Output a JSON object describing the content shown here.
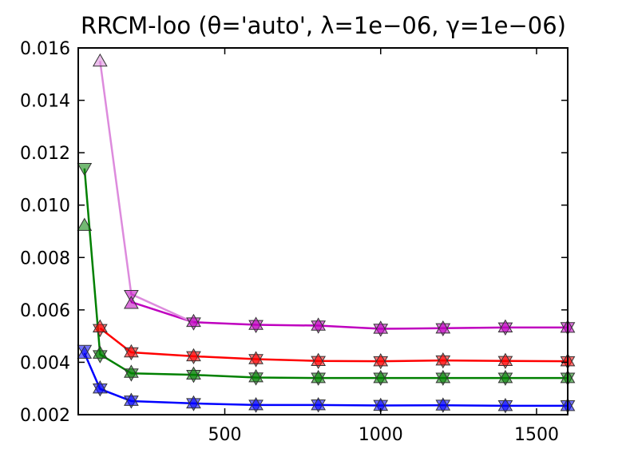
{
  "chart_data": {
    "type": "line",
    "title": "RRCM-loo (θ='auto', λ=1e−06, γ=1e−06)",
    "xlabel": "",
    "ylabel": "",
    "xlim": [
      30,
      1600
    ],
    "ylim": [
      0.002,
      0.016
    ],
    "xticks": [
      500,
      1000,
      1500
    ],
    "xtick_labels": [
      "500",
      "1000",
      "1500"
    ],
    "yticks": [
      0.002,
      0.004,
      0.006,
      0.008,
      0.01,
      0.012,
      0.014,
      0.016
    ],
    "ytick_labels": [
      "0.002",
      "0.004",
      "0.006",
      "0.008",
      "0.010",
      "0.012",
      "0.014",
      "0.016"
    ],
    "grid": false,
    "x": [
      50,
      100,
      200,
      400,
      600,
      800,
      1000,
      1200,
      1400,
      1600
    ],
    "series": [
      {
        "color": "#0000ff",
        "line_values": [
          0.00435,
          0.00298,
          0.00252,
          0.00243,
          0.00237,
          0.00237,
          0.00235,
          0.00236,
          0.00234,
          0.00234
        ],
        "marker_up": [
          0.00435,
          0.00302,
          0.00255,
          0.00245,
          0.00238,
          0.00238,
          0.00236,
          0.00237,
          0.00235,
          0.00235
        ],
        "marker_down": [
          0.00445,
          0.00298,
          0.00252,
          0.00242,
          0.00236,
          0.00237,
          0.00235,
          0.00236,
          0.00234,
          0.00234
        ]
      },
      {
        "color": "#008000",
        "line_values": [
          0.0114,
          0.0043,
          0.00358,
          0.00352,
          0.00342,
          0.0034,
          0.0034,
          0.0034,
          0.0034,
          0.0034
        ],
        "marker_up": [
          0.00923,
          0.00435,
          0.00362,
          0.00355,
          0.00345,
          0.00342,
          0.00342,
          0.00342,
          0.00342,
          0.00342
        ],
        "marker_down": [
          0.0114,
          0.00425,
          0.00355,
          0.0035,
          0.0034,
          0.00339,
          0.00339,
          0.00339,
          0.00339,
          0.00339
        ]
      },
      {
        "color": "#ff0000",
        "line_values": [
          null,
          0.0053,
          0.00438,
          0.00423,
          0.00412,
          0.00405,
          0.00404,
          0.00407,
          0.00405,
          0.00404
        ],
        "marker_up": [
          null,
          0.00535,
          0.0044,
          0.00425,
          0.00414,
          0.00407,
          0.00406,
          0.00409,
          0.00407,
          0.00406
        ],
        "marker_down": [
          null,
          0.00525,
          0.00436,
          0.00421,
          0.0041,
          0.00403,
          0.00402,
          0.00405,
          0.00403,
          0.00402
        ]
      },
      {
        "color": "#bf00bf",
        "line_values": [
          null,
          null,
          0.0063,
          0.00553,
          0.00543,
          0.0054,
          0.00528,
          0.0053,
          0.00533,
          0.00533
        ],
        "marker_up": [
          null,
          null,
          0.00625,
          0.00556,
          0.00545,
          0.00542,
          0.0053,
          0.00531,
          0.00535,
          0.00534
        ],
        "marker_down": [
          null,
          null,
          0.00655,
          0.0055,
          0.0054,
          0.00538,
          0.00526,
          0.00528,
          0.00531,
          0.00532
        ]
      },
      {
        "color": "#dd8bdd",
        "line_values": [
          null,
          0.0155,
          0.0066,
          0.00552,
          null,
          null,
          null,
          null,
          null,
          null
        ],
        "marker_up": [
          null,
          0.0155,
          null,
          null,
          null,
          null,
          null,
          null,
          null,
          null
        ],
        "marker_down": [
          null,
          null,
          null,
          null,
          null,
          null,
          null,
          null,
          null,
          null
        ]
      }
    ]
  }
}
